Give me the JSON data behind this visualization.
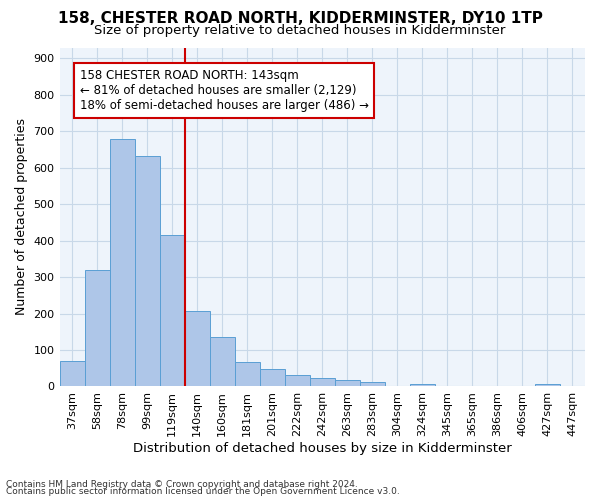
{
  "title": "158, CHESTER ROAD NORTH, KIDDERMINSTER, DY10 1TP",
  "subtitle": "Size of property relative to detached houses in Kidderminster",
  "xlabel": "Distribution of detached houses by size in Kidderminster",
  "ylabel": "Number of detached properties",
  "footnote1": "Contains HM Land Registry data © Crown copyright and database right 2024.",
  "footnote2": "Contains public sector information licensed under the Open Government Licence v3.0.",
  "bin_labels": [
    "37sqm",
    "58sqm",
    "78sqm",
    "99sqm",
    "119sqm",
    "140sqm",
    "160sqm",
    "181sqm",
    "201sqm",
    "222sqm",
    "242sqm",
    "263sqm",
    "283sqm",
    "304sqm",
    "324sqm",
    "345sqm",
    "365sqm",
    "386sqm",
    "406sqm",
    "427sqm",
    "447sqm"
  ],
  "bar_values": [
    70,
    320,
    680,
    633,
    415,
    207,
    137,
    68,
    47,
    32,
    23,
    18,
    11,
    0,
    8,
    0,
    0,
    0,
    0,
    8,
    0
  ],
  "bar_color": "#aec6e8",
  "bar_edge_color": "#5a9fd4",
  "vline_x_index": 4,
  "vline_color": "#cc0000",
  "annotation_text": "158 CHESTER ROAD NORTH: 143sqm\n← 81% of detached houses are smaller (2,129)\n18% of semi-detached houses are larger (486) →",
  "annotation_box_color": "#ffffff",
  "annotation_box_edge_color": "#cc0000",
  "ylim": [
    0,
    930
  ],
  "yticks": [
    0,
    100,
    200,
    300,
    400,
    500,
    600,
    700,
    800,
    900
  ],
  "grid_color": "#c8d8e8",
  "bg_color": "#eef4fb",
  "title_fontsize": 11,
  "subtitle_fontsize": 9.5,
  "ylabel_fontsize": 9,
  "xlabel_fontsize": 9.5,
  "tick_fontsize": 8,
  "annotation_fontsize": 8.5
}
